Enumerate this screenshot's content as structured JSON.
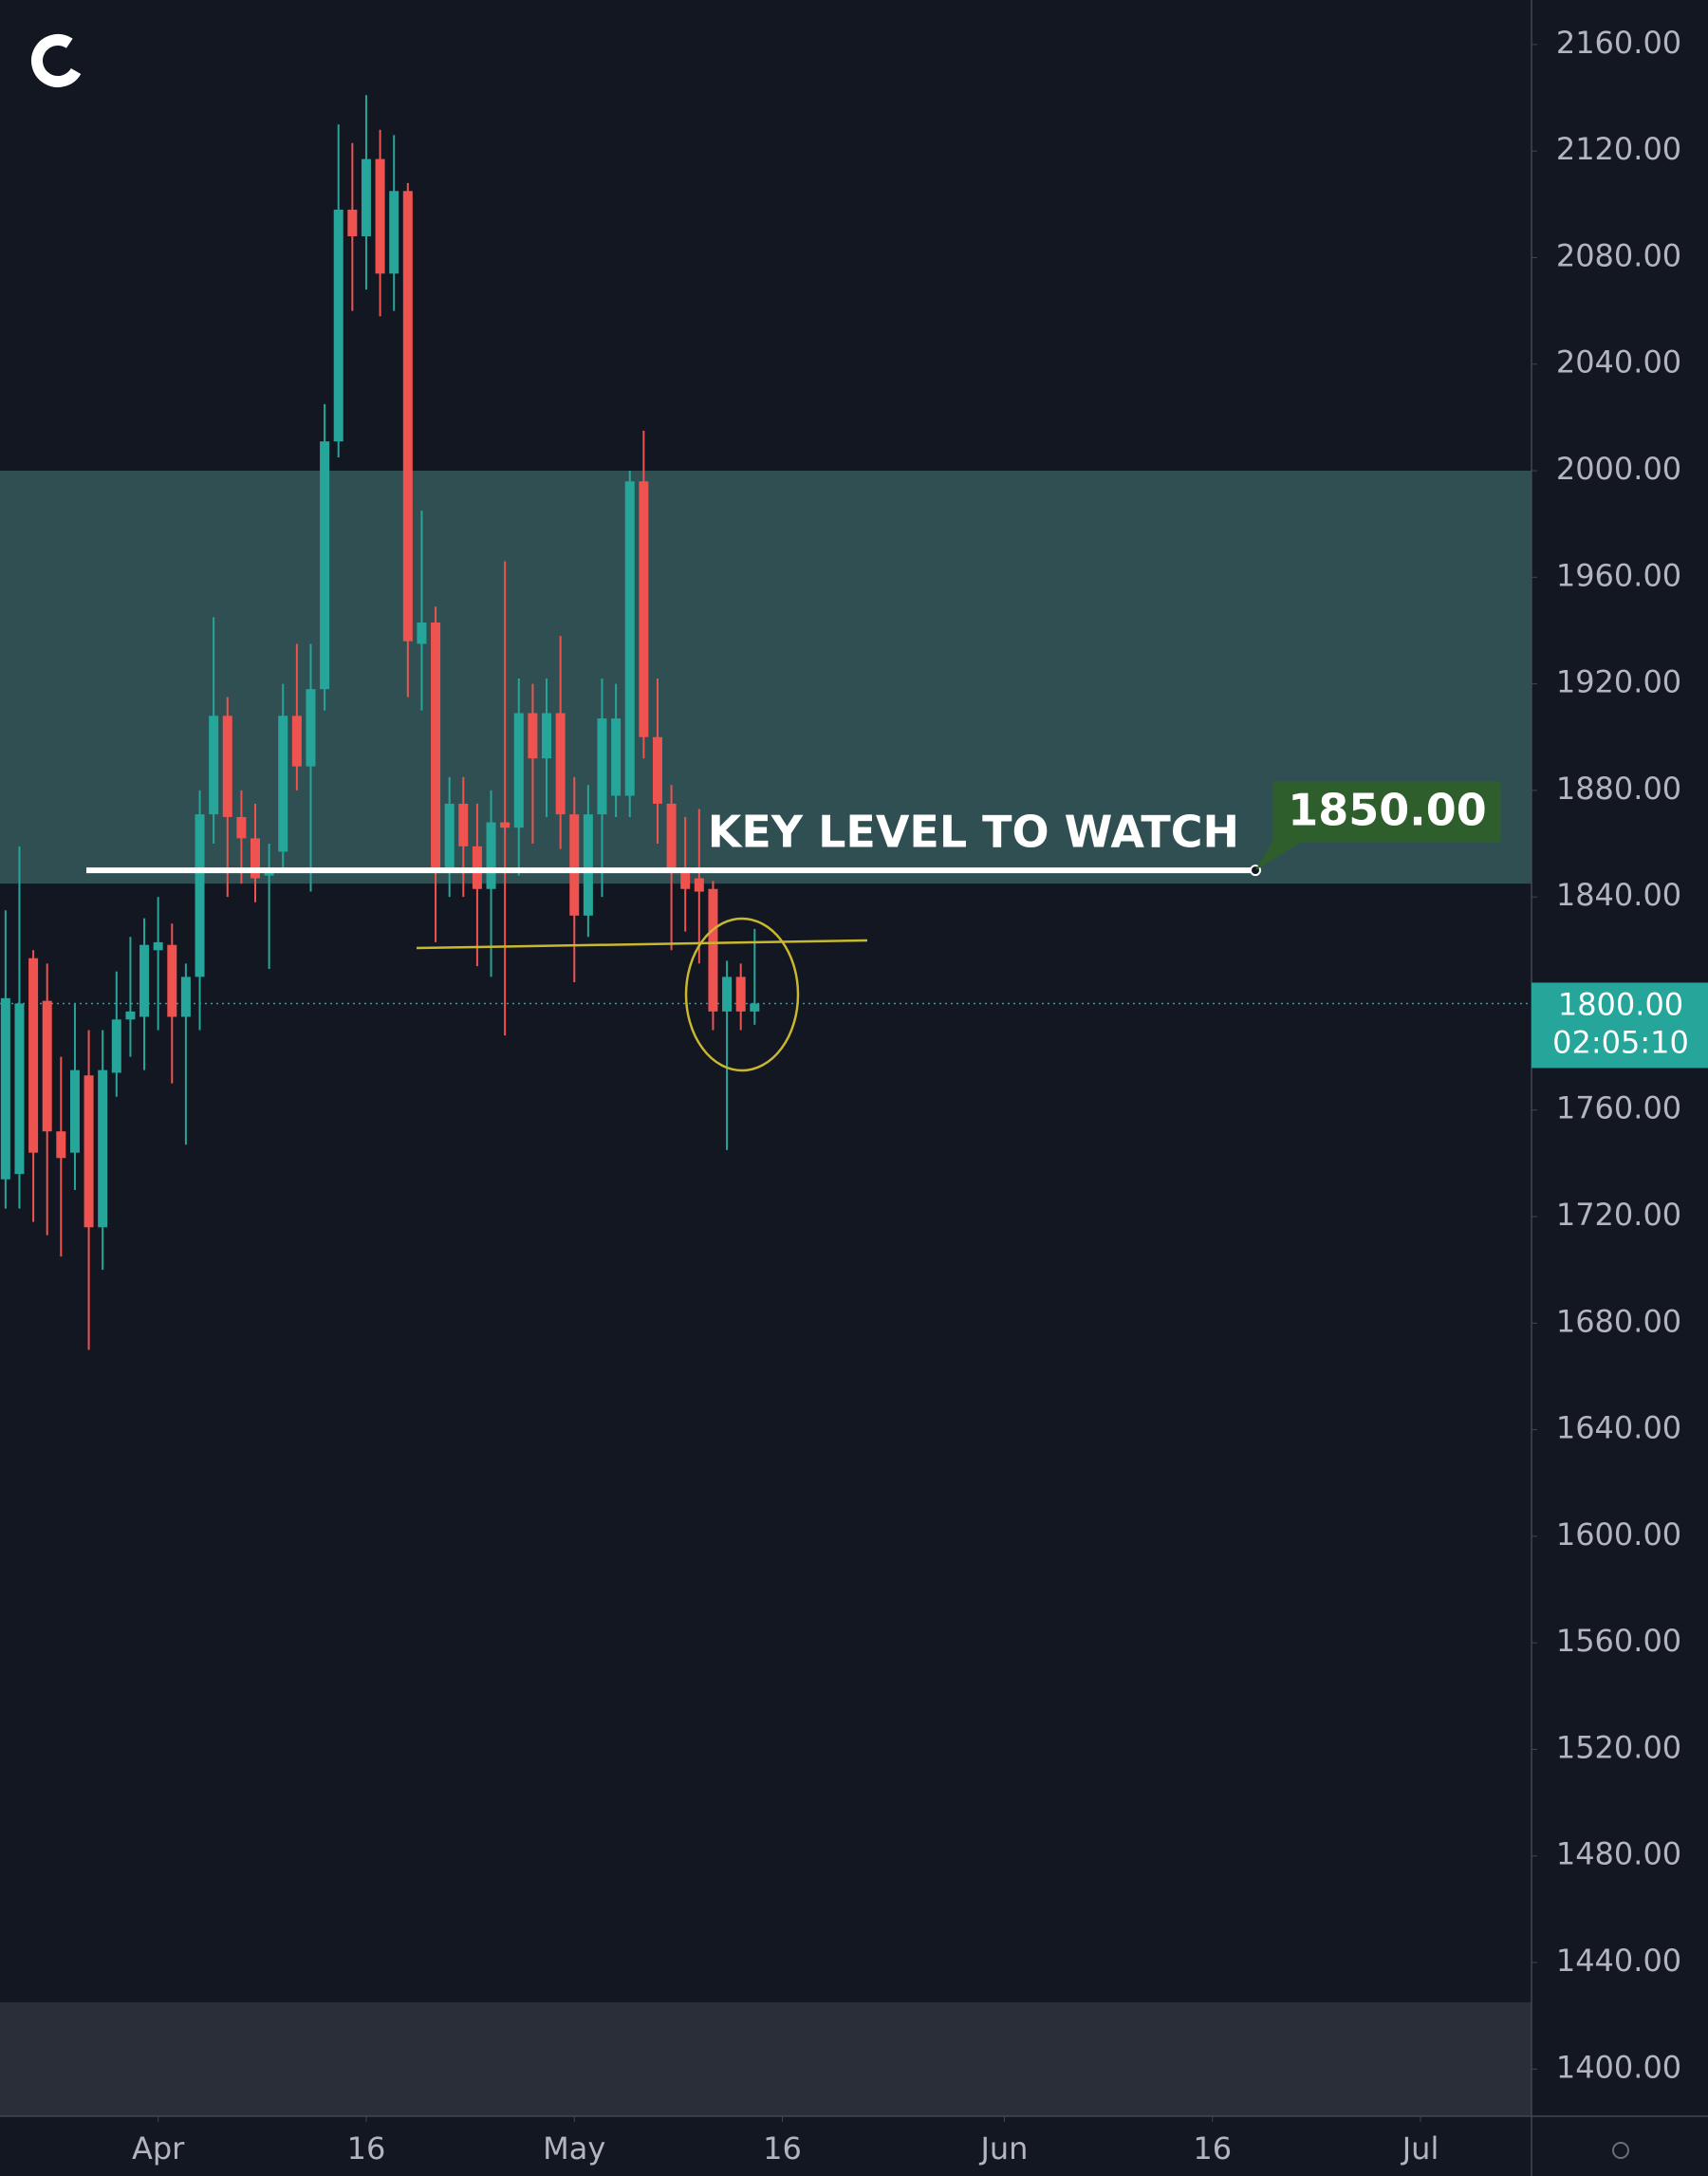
{
  "chart_data": {
    "type": "candlestick",
    "up_color": "#26a69a",
    "down_color": "#ef5350",
    "x": [
      -11,
      -10,
      -9,
      -8,
      -7,
      -6,
      -5,
      -4,
      -3,
      -2,
      -1,
      0,
      1,
      2,
      3,
      4,
      5,
      6,
      7,
      8,
      9,
      10,
      11,
      12,
      13,
      14,
      15,
      16,
      17,
      18,
      19,
      20,
      21,
      22,
      23,
      24,
      25,
      26,
      27,
      28,
      29,
      30,
      31,
      32,
      33,
      34,
      35,
      36,
      37,
      38,
      39,
      40,
      41,
      42,
      43
    ],
    "open": [
      1734,
      1736,
      1817,
      1801,
      1752,
      1744,
      1773,
      1716,
      1774,
      1794,
      1795,
      1820,
      1822,
      1795,
      1810,
      1871,
      1908,
      1870,
      1862,
      1848,
      1857,
      1908,
      1889,
      1918,
      2011,
      2098,
      2088,
      2117,
      2074,
      2105,
      1935,
      1943,
      1851,
      1875,
      1859,
      1843,
      1868,
      1866,
      1909,
      1892,
      1909,
      1871,
      1833,
      1871,
      1878,
      1878,
      1996,
      1900,
      1875,
      1849,
      1847,
      1843,
      1797,
      1810,
      1797
    ],
    "high": [
      1835,
      1859,
      1820,
      1815,
      1780,
      1800,
      1790,
      1790,
      1812,
      1825,
      1832,
      1840,
      1830,
      1815,
      1880,
      1945,
      1915,
      1880,
      1875,
      1860,
      1920,
      1935,
      1935,
      2025,
      2130,
      2123,
      2141,
      2128,
      2126,
      2108,
      1985,
      1949,
      1885,
      1885,
      1875,
      1880,
      1966,
      1922,
      1920,
      1922,
      1938,
      1885,
      1882,
      1922,
      1920,
      2000,
      2015,
      1922,
      1882,
      1870,
      1873,
      1846,
      1816,
      1815,
      1828
    ],
    "low": [
      1723,
      1723,
      1718,
      1713,
      1705,
      1730,
      1670,
      1700,
      1765,
      1780,
      1775,
      1790,
      1770,
      1747,
      1790,
      1860,
      1840,
      1845,
      1838,
      1813,
      1850,
      1880,
      1842,
      1910,
      2005,
      2060,
      2068,
      2058,
      2060,
      1915,
      1910,
      1823,
      1840,
      1840,
      1814,
      1810,
      1788,
      1848,
      1860,
      1870,
      1858,
      1808,
      1825,
      1840,
      1870,
      1870,
      1892,
      1860,
      1820,
      1827,
      1815,
      1790,
      1745,
      1790,
      1792
    ],
    "close": [
      1802,
      1800,
      1744,
      1752,
      1742,
      1775,
      1716,
      1775,
      1794,
      1797,
      1822,
      1823,
      1795,
      1810,
      1871,
      1908,
      1870,
      1862,
      1847,
      1850,
      1908,
      1889,
      1918,
      2011,
      2098,
      2088,
      2117,
      2074,
      2105,
      1936,
      1943,
      1851,
      1875,
      1859,
      1843,
      1868,
      1866,
      1909,
      1892,
      1909,
      1871,
      1833,
      1871,
      1907,
      1907,
      1996,
      1900,
      1875,
      1849,
      1843,
      1842,
      1797,
      1810,
      1797,
      1800
    ],
    "xlim": [
      -11.4,
      99
    ],
    "xticks": [
      {
        "value": 0,
        "label": "Apr"
      },
      {
        "value": 15,
        "label": "16"
      },
      {
        "value": 30,
        "label": "May"
      },
      {
        "value": 45,
        "label": "16"
      },
      {
        "value": 61,
        "label": "Jun"
      },
      {
        "value": 76,
        "label": "16"
      },
      {
        "value": 91,
        "label": "Jul"
      }
    ],
    "ylim": [
      1382.3,
      2176.7
    ],
    "yticks": [
      {
        "value": 1400,
        "label": "1400.00"
      },
      {
        "value": 1440,
        "label": "1440.00"
      },
      {
        "value": 1480,
        "label": "1480.00"
      },
      {
        "value": 1520,
        "label": "1520.00"
      },
      {
        "value": 1560,
        "label": "1560.00"
      },
      {
        "value": 1600,
        "label": "1600.00"
      },
      {
        "value": 1640,
        "label": "1640.00"
      },
      {
        "value": 1680,
        "label": "1680.00"
      },
      {
        "value": 1720,
        "label": "1720.00"
      },
      {
        "value": 1760,
        "label": "1760.00"
      },
      {
        "value": 1800,
        "label": "1800.00"
      },
      {
        "value": 1840,
        "label": "1840.00"
      },
      {
        "value": 1880,
        "label": "1880.00"
      },
      {
        "value": 1920,
        "label": "1920.00"
      },
      {
        "value": 1960,
        "label": "1960.00"
      },
      {
        "value": 2000,
        "label": "2000.00"
      },
      {
        "value": 2040,
        "label": "2040.00"
      },
      {
        "value": 2080,
        "label": "2080.00"
      },
      {
        "value": 2120,
        "label": "2120.00"
      },
      {
        "value": 2160,
        "label": "2160.00"
      }
    ],
    "zone": [
      1845,
      2000
    ],
    "zone_color": "#2f4f52",
    "key_level": {
      "value": 1850,
      "label": "1850.00",
      "text": "KEY LEVEL TO WATCH",
      "color": "#2e5e2c"
    },
    "last_price": {
      "value": 1800,
      "label": "1800.00",
      "countdown": "02:05:10",
      "color": "#26a69a"
    }
  }
}
